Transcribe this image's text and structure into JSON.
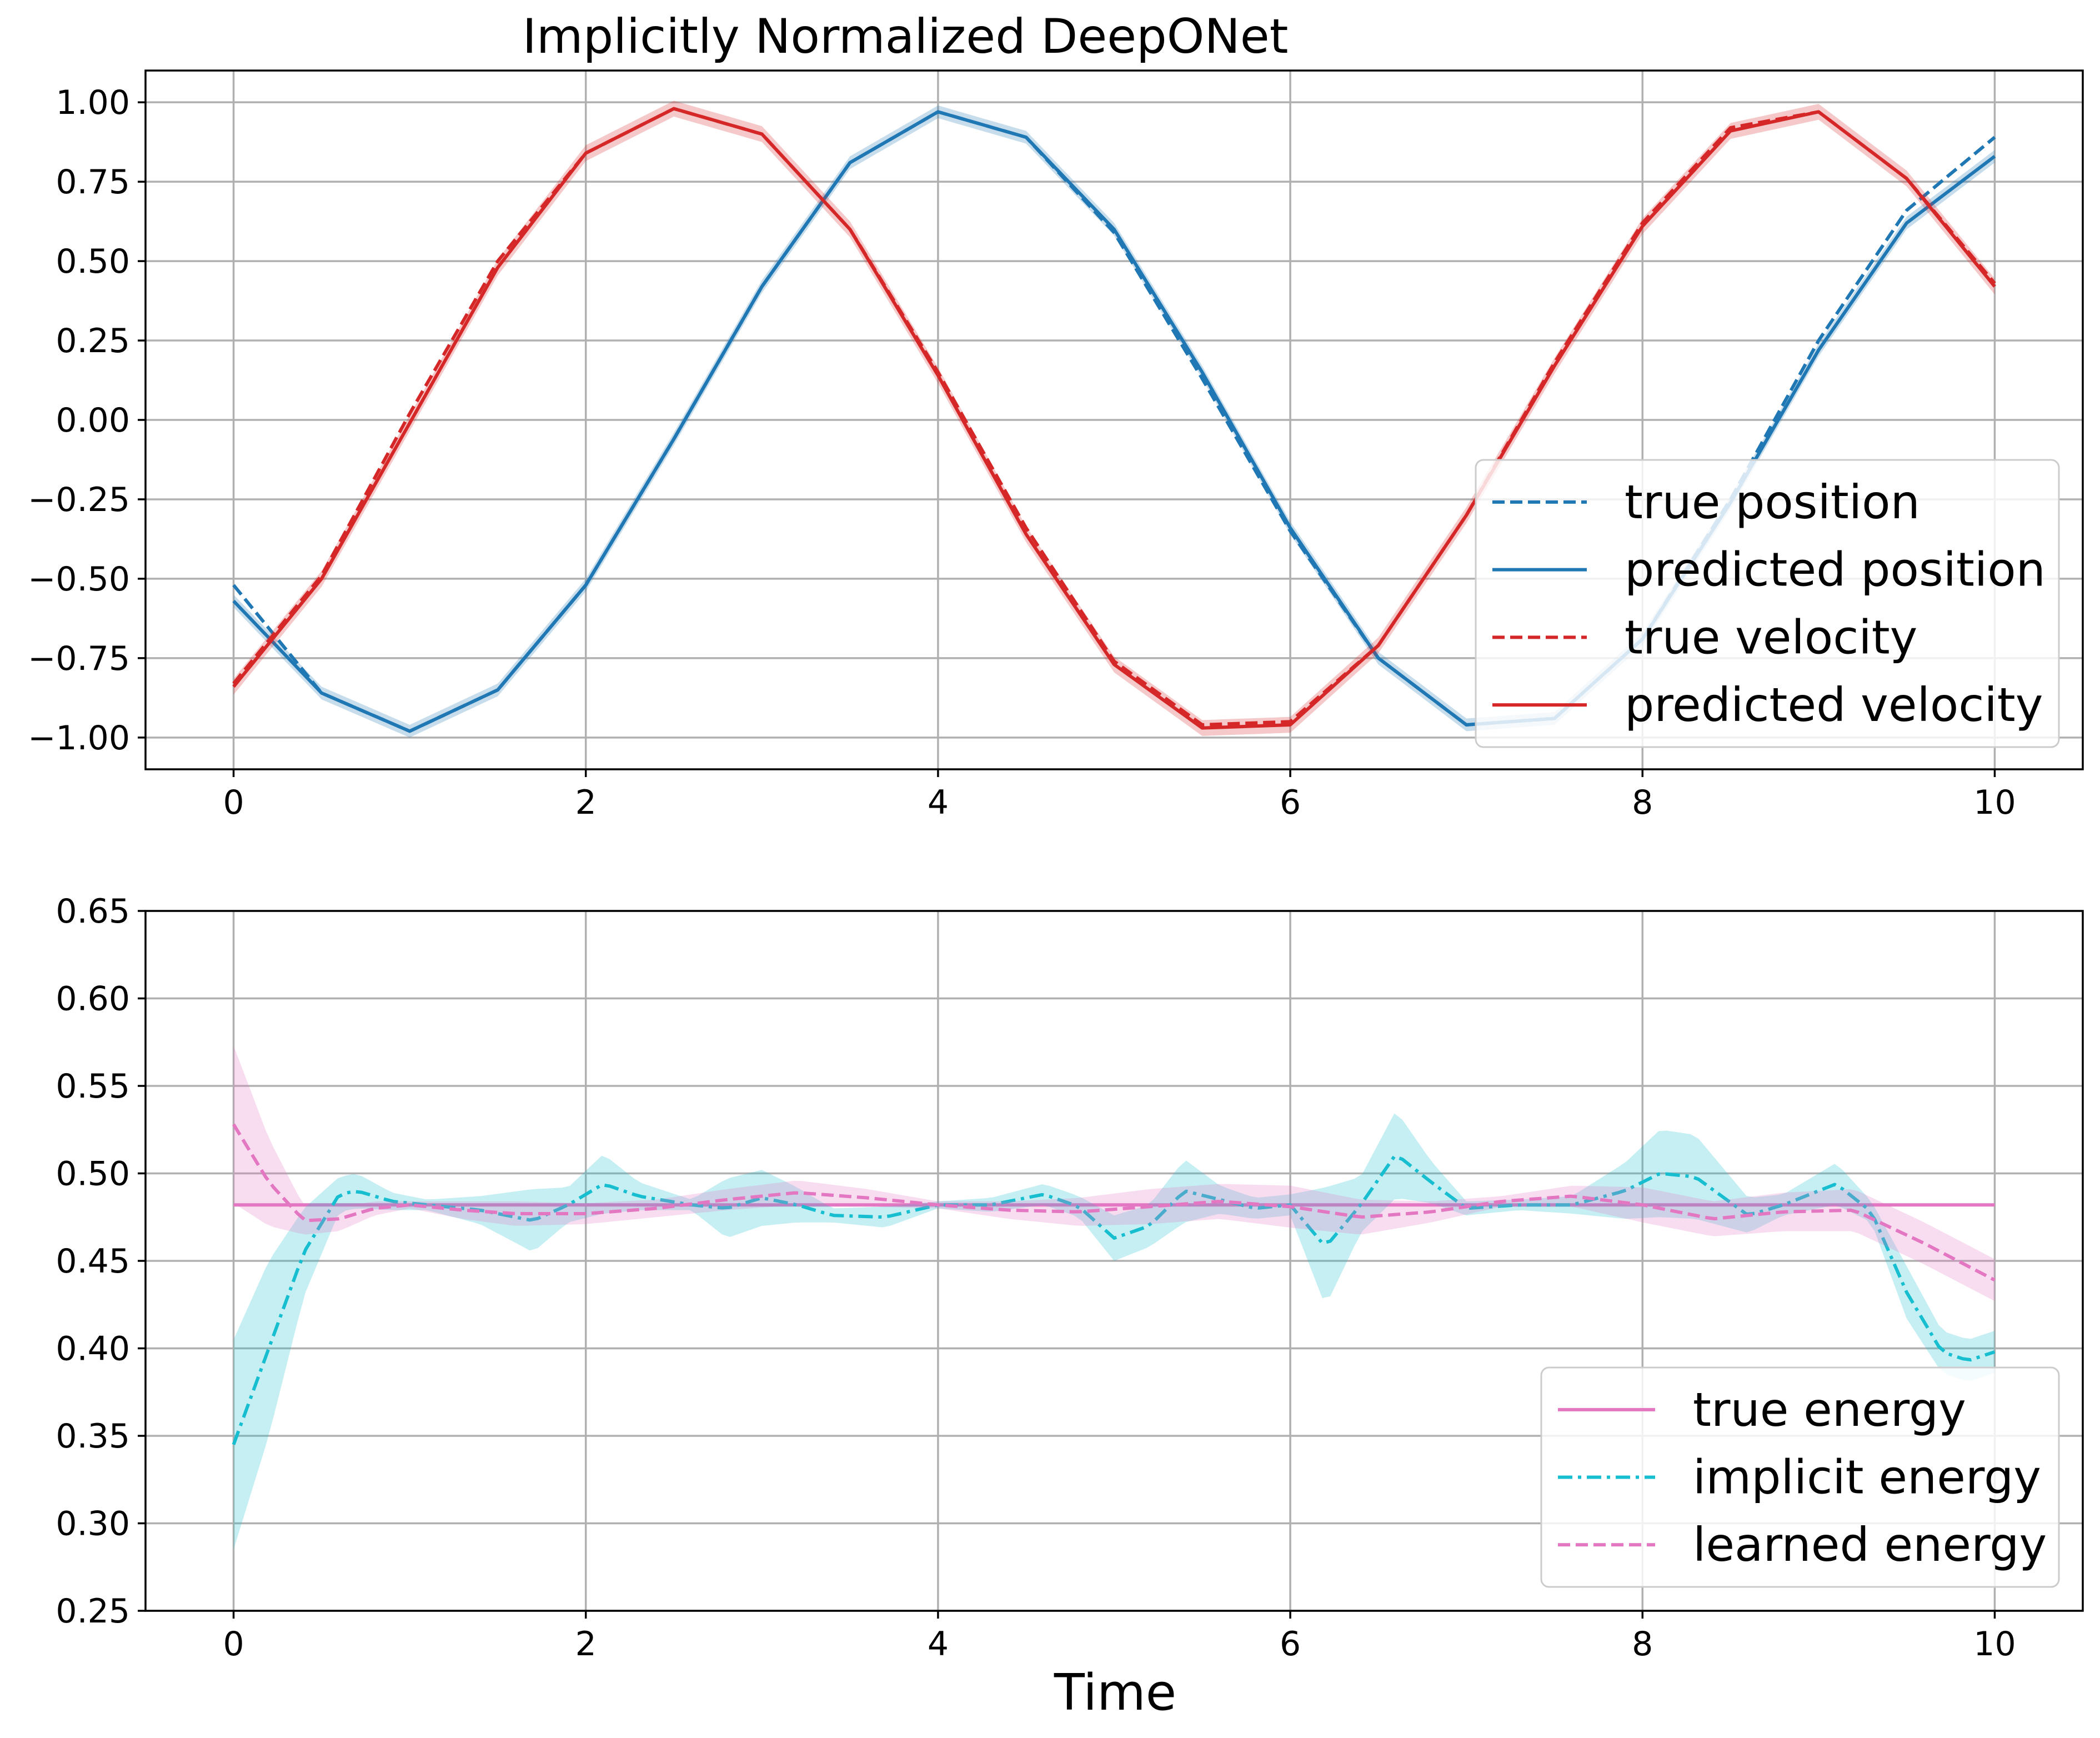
{
  "figure": {
    "title": "Implicitly Normalized DeepONet",
    "xlabel": "Time"
  },
  "chart_data": [
    {
      "type": "line",
      "title": "Implicitly Normalized DeepONet",
      "xlabel": "",
      "ylabel": "",
      "xlim": [
        -0.5,
        10.5
      ],
      "ylim": [
        -1.1,
        1.1
      ],
      "xticks": [
        0,
        2,
        4,
        6,
        8,
        10
      ],
      "yticks": [
        -1.0,
        -0.75,
        -0.5,
        -0.25,
        0.0,
        0.25,
        0.5,
        0.75,
        1.0
      ],
      "xtick_labels": [
        "0",
        "2",
        "4",
        "6",
        "8",
        "10"
      ],
      "ytick_labels": [
        "−1.00",
        "−0.75",
        "−0.50",
        "−0.25",
        "0.00",
        "0.25",
        "0.50",
        "0.75",
        "1.00"
      ],
      "grid": true,
      "legend_position": "lower-right",
      "x": [
        0,
        0.5,
        1,
        1.5,
        2,
        2.5,
        3,
        3.5,
        4,
        4.5,
        5,
        5.5,
        6,
        6.5,
        7,
        7.5,
        8,
        8.5,
        9,
        9.5,
        10
      ],
      "series": [
        {
          "name": "true position",
          "color": "#1f77b4",
          "dash": "dashed",
          "values": [
            -0.52,
            -0.86,
            -0.98,
            -0.85,
            -0.52,
            -0.06,
            0.42,
            0.81,
            0.97,
            0.89,
            0.59,
            0.13,
            -0.35,
            -0.75,
            -0.96,
            -0.94,
            -0.69,
            -0.25,
            0.25,
            0.66,
            0.89
          ]
        },
        {
          "name": "predicted position",
          "color": "#1f77b4",
          "dash": "solid",
          "band": 0.02,
          "values": [
            -0.57,
            -0.86,
            -0.98,
            -0.85,
            -0.52,
            -0.06,
            0.42,
            0.81,
            0.97,
            0.89,
            0.6,
            0.15,
            -0.34,
            -0.75,
            -0.96,
            -0.94,
            -0.69,
            -0.26,
            0.22,
            0.62,
            0.83
          ]
        },
        {
          "name": "true velocity",
          "color": "#d62728",
          "dash": "dashed",
          "values": [
            -0.83,
            -0.49,
            0.02,
            0.5,
            0.84,
            0.98,
            0.9,
            0.6,
            0.15,
            -0.34,
            -0.76,
            -0.96,
            -0.95,
            -0.71,
            -0.3,
            0.18,
            0.62,
            0.92,
            0.97,
            0.76,
            0.43
          ]
        },
        {
          "name": "predicted velocity",
          "color": "#d62728",
          "dash": "solid",
          "band": 0.025,
          "values": [
            -0.84,
            -0.5,
            -0.01,
            0.48,
            0.84,
            0.98,
            0.9,
            0.6,
            0.14,
            -0.36,
            -0.77,
            -0.97,
            -0.96,
            -0.71,
            -0.3,
            0.17,
            0.61,
            0.91,
            0.97,
            0.76,
            0.42
          ]
        }
      ]
    },
    {
      "type": "line",
      "title": "",
      "xlabel": "Time",
      "ylabel": "",
      "xlim": [
        -0.5,
        10.5
      ],
      "ylim": [
        0.25,
        0.65
      ],
      "xticks": [
        0,
        2,
        4,
        6,
        8,
        10
      ],
      "yticks": [
        0.25,
        0.3,
        0.35,
        0.4,
        0.45,
        0.5,
        0.55,
        0.6,
        0.65
      ],
      "xtick_labels": [
        "0",
        "2",
        "4",
        "6",
        "8",
        "10"
      ],
      "ytick_labels": [
        "0.25",
        "0.30",
        "0.35",
        "0.40",
        "0.45",
        "0.50",
        "0.55",
        "0.60",
        "0.65"
      ],
      "grid": true,
      "legend_position": "lower-right",
      "series": [
        {
          "name": "true energy",
          "color": "#e377c2",
          "dash": "solid",
          "x": [
            0,
            10
          ],
          "values": [
            0.482,
            0.482
          ]
        },
        {
          "name": "implicit energy",
          "color": "#17becf",
          "dash": "dashdot",
          "x": [
            0,
            0.2,
            0.4,
            0.6,
            0.7,
            0.9,
            1.1,
            1.4,
            1.7,
            1.9,
            2.1,
            2.3,
            2.6,
            2.8,
            3.0,
            3.2,
            3.4,
            3.7,
            4.0,
            4.3,
            4.6,
            4.8,
            5.0,
            5.2,
            5.4,
            5.6,
            5.8,
            6.0,
            6.2,
            6.4,
            6.6,
            6.8,
            7.0,
            7.3,
            7.6,
            7.9,
            8.1,
            8.3,
            8.6,
            8.8,
            9.1,
            9.3,
            9.5,
            9.7,
            9.85,
            10
          ],
          "values": [
            0.345,
            0.4,
            0.455,
            0.488,
            0.49,
            0.484,
            0.482,
            0.479,
            0.473,
            0.482,
            0.494,
            0.487,
            0.482,
            0.48,
            0.486,
            0.482,
            0.476,
            0.475,
            0.482,
            0.482,
            0.488,
            0.481,
            0.463,
            0.47,
            0.49,
            0.485,
            0.48,
            0.482,
            0.458,
            0.482,
            0.511,
            0.495,
            0.48,
            0.482,
            0.482,
            0.49,
            0.5,
            0.498,
            0.476,
            0.482,
            0.494,
            0.478,
            0.432,
            0.398,
            0.393,
            0.398
          ],
          "band": [
            0.06,
            0.05,
            0.025,
            0.01,
            0.01,
            0.005,
            0.003,
            0.008,
            0.018,
            0.01,
            0.017,
            0.008,
            0.003,
            0.017,
            0.016,
            0.01,
            0.004,
            0.006,
            0.002,
            0.004,
            0.006,
            0.006,
            0.013,
            0.012,
            0.018,
            0.008,
            0.006,
            0.006,
            0.034,
            0.016,
            0.025,
            0.012,
            0.004,
            0.003,
            0.005,
            0.016,
            0.025,
            0.024,
            0.01,
            0.006,
            0.012,
            0.006,
            0.015,
            0.012,
            0.012,
            0.012
          ]
        },
        {
          "name": "learned energy",
          "color": "#e377c2",
          "dash": "dashed",
          "x": [
            0,
            0.2,
            0.4,
            0.6,
            0.8,
            1.0,
            1.3,
            1.6,
            2.0,
            2.4,
            2.8,
            3.2,
            3.6,
            4.0,
            4.4,
            4.8,
            5.2,
            5.6,
            6.0,
            6.4,
            6.8,
            7.2,
            7.6,
            8.0,
            8.4,
            8.8,
            9.2,
            9.6,
            10
          ],
          "values": [
            0.528,
            0.495,
            0.473,
            0.474,
            0.48,
            0.482,
            0.479,
            0.477,
            0.477,
            0.48,
            0.485,
            0.489,
            0.486,
            0.482,
            0.479,
            0.478,
            0.481,
            0.484,
            0.481,
            0.475,
            0.478,
            0.484,
            0.487,
            0.482,
            0.474,
            0.478,
            0.479,
            0.46,
            0.439
          ],
          "band": [
            0.045,
            0.025,
            0.008,
            0.007,
            0.004,
            0.002,
            0.005,
            0.007,
            0.006,
            0.005,
            0.006,
            0.007,
            0.005,
            0.002,
            0.005,
            0.008,
            0.01,
            0.01,
            0.012,
            0.01,
            0.006,
            0.003,
            0.006,
            0.01,
            0.01,
            0.011,
            0.012,
            0.012,
            0.012
          ]
        }
      ]
    }
  ]
}
